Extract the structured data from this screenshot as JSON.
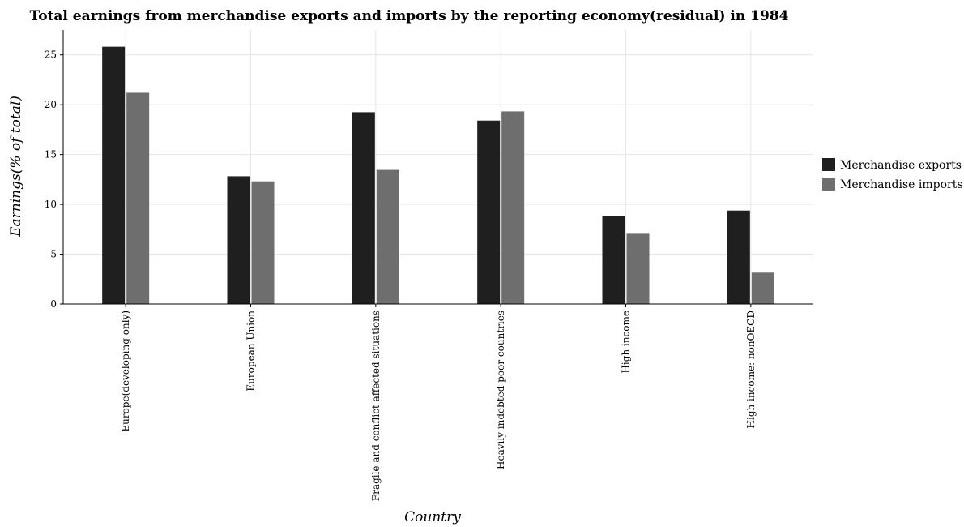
{
  "chart_data": {
    "type": "bar",
    "title": "Total earnings from merchandise exports and imports by the reporting economy(residual) in 1984",
    "xlabel": "Country",
    "ylabel": "Earnings(% of total)",
    "ylim": [
      0,
      27.5
    ],
    "yticks": [
      0,
      5,
      10,
      15,
      20,
      25
    ],
    "grid": true,
    "legend_position": "right",
    "categories": [
      "Europe(developing only)",
      "European Union",
      "Fragile and conflict affected situations",
      "Heavily indebted poor countries",
      "High income",
      "High income: nonOECD"
    ],
    "series": [
      {
        "name": "Merchandise exports",
        "color": "#1f1f1f",
        "values": [
          25.82,
          12.82,
          19.25,
          18.41,
          8.86,
          9.38
        ]
      },
      {
        "name": "Merchandise imports",
        "color": "#6e6e6e",
        "values": [
          21.2,
          12.31,
          13.46,
          19.33,
          7.13,
          3.15
        ]
      }
    ]
  }
}
